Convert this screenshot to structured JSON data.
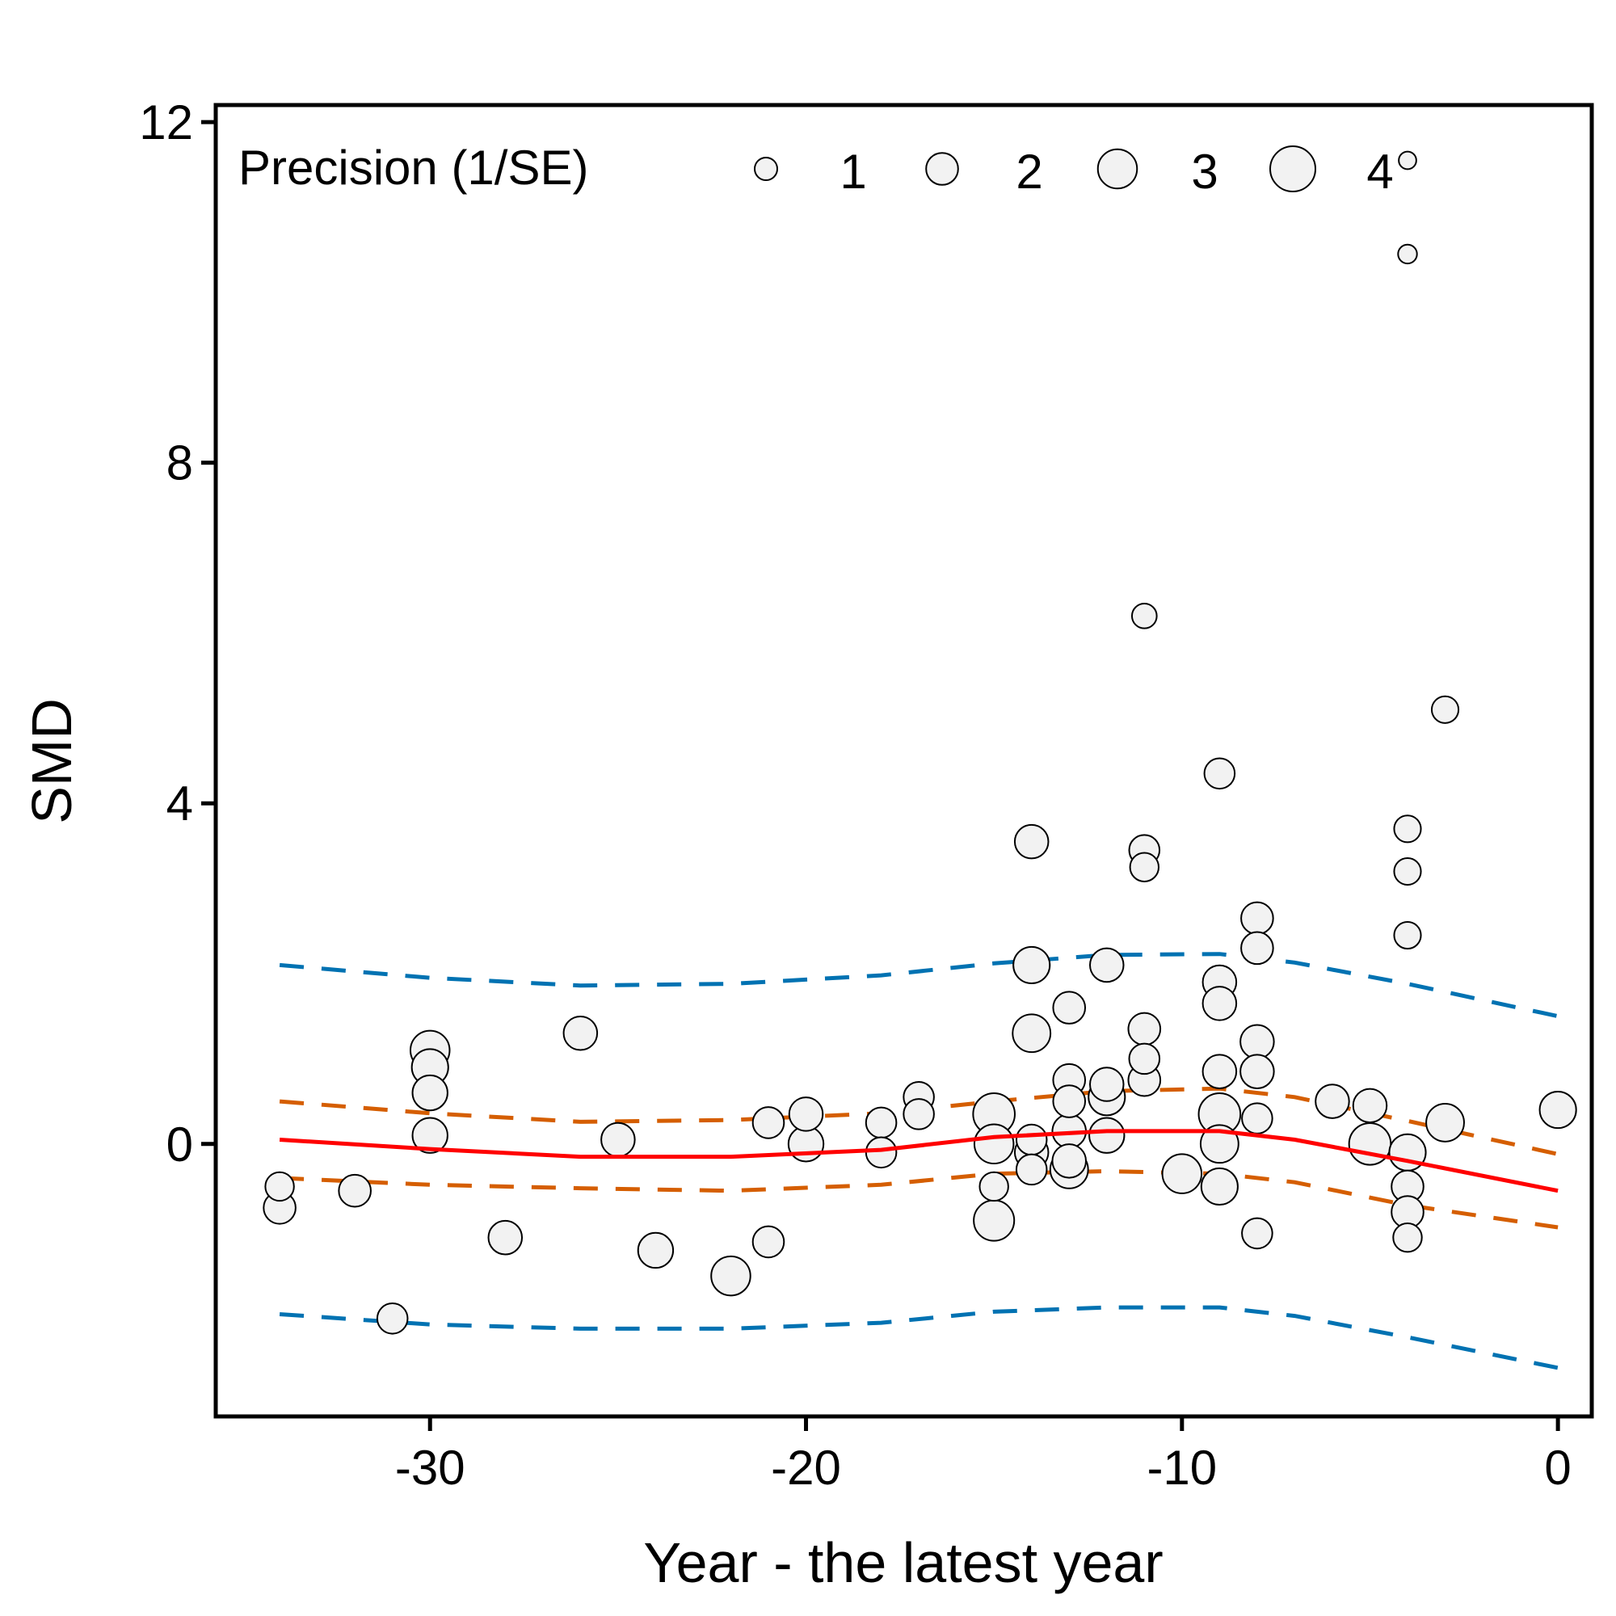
{
  "chart_data": {
    "type": "scatter",
    "title": "",
    "xlabel": "Year - the latest year",
    "ylabel": "SMD",
    "xlim": [
      -35.7,
      0.9
    ],
    "ylim": [
      -3.2,
      12.2
    ],
    "xticks": [
      -30,
      -20,
      -10,
      0
    ],
    "yticks": [
      0,
      4,
      8,
      12
    ],
    "grid": false,
    "legend": {
      "title": "Precision (1/SE)",
      "position": "top-left",
      "entries": [
        {
          "label": "1",
          "precision": 1
        },
        {
          "label": "2",
          "precision": 2
        },
        {
          "label": "3",
          "precision": 3
        },
        {
          "label": "4",
          "precision": 4
        }
      ]
    },
    "colors": {
      "point_fill": "#f2f2f2",
      "point_stroke": "#000000",
      "fit_line": "#ff0000",
      "confidence_band": "#d55e00",
      "prediction_band": "#0072b2"
    },
    "points": [
      {
        "x": -34,
        "y": -0.5,
        "precision": 1.6
      },
      {
        "x": -34,
        "y": -0.75,
        "precision": 2.0
      },
      {
        "x": -32,
        "y": -0.55,
        "precision": 2.0
      },
      {
        "x": -31,
        "y": -2.05,
        "precision": 1.8
      },
      {
        "x": -30,
        "y": 1.1,
        "precision": 3.0
      },
      {
        "x": -30,
        "y": 0.9,
        "precision": 2.6
      },
      {
        "x": -30,
        "y": 0.6,
        "precision": 2.4
      },
      {
        "x": -30,
        "y": 0.1,
        "precision": 2.4
      },
      {
        "x": -28,
        "y": -1.1,
        "precision": 2.2
      },
      {
        "x": -26,
        "y": 1.3,
        "precision": 2.2
      },
      {
        "x": -25,
        "y": 0.05,
        "precision": 2.2
      },
      {
        "x": -24,
        "y": -1.25,
        "precision": 2.4
      },
      {
        "x": -22,
        "y": -1.55,
        "precision": 3.0
      },
      {
        "x": -21,
        "y": 0.25,
        "precision": 1.9
      },
      {
        "x": -21,
        "y": -1.15,
        "precision": 1.9
      },
      {
        "x": -20,
        "y": 0.35,
        "precision": 2.2
      },
      {
        "x": -20,
        "y": 0.0,
        "precision": 2.4
      },
      {
        "x": -18,
        "y": 0.25,
        "precision": 1.8
      },
      {
        "x": -18,
        "y": -0.1,
        "precision": 1.8
      },
      {
        "x": -17,
        "y": 0.55,
        "precision": 1.8
      },
      {
        "x": -17,
        "y": 0.35,
        "precision": 1.8
      },
      {
        "x": -15,
        "y": 0.35,
        "precision": 3.4
      },
      {
        "x": -15,
        "y": 0.0,
        "precision": 3.0
      },
      {
        "x": -15,
        "y": -0.5,
        "precision": 1.6
      },
      {
        "x": -15,
        "y": -0.9,
        "precision": 3.2
      },
      {
        "x": -14,
        "y": 3.55,
        "precision": 2.2
      },
      {
        "x": -14,
        "y": 2.1,
        "precision": 2.6
      },
      {
        "x": -14,
        "y": 1.3,
        "precision": 2.8
      },
      {
        "x": -14,
        "y": 0.05,
        "precision": 1.8
      },
      {
        "x": -14,
        "y": -0.1,
        "precision": 2.2
      },
      {
        "x": -14,
        "y": -0.3,
        "precision": 1.8
      },
      {
        "x": -13,
        "y": 1.6,
        "precision": 2.0
      },
      {
        "x": -13,
        "y": 0.75,
        "precision": 2.0
      },
      {
        "x": -13,
        "y": 0.5,
        "precision": 2.0
      },
      {
        "x": -13,
        "y": 0.15,
        "precision": 2.2
      },
      {
        "x": -13,
        "y": -0.2,
        "precision": 2.2
      },
      {
        "x": -13,
        "y": -0.3,
        "precision": 2.8
      },
      {
        "x": -12,
        "y": 2.1,
        "precision": 2.2
      },
      {
        "x": -12,
        "y": 0.7,
        "precision": 2.2
      },
      {
        "x": -12,
        "y": 0.55,
        "precision": 2.6
      },
      {
        "x": -12,
        "y": 0.1,
        "precision": 2.4
      },
      {
        "x": -11,
        "y": 6.2,
        "precision": 1.2
      },
      {
        "x": -11,
        "y": 3.45,
        "precision": 1.8
      },
      {
        "x": -11,
        "y": 3.25,
        "precision": 1.6
      },
      {
        "x": -11,
        "y": 1.35,
        "precision": 2.0
      },
      {
        "x": -11,
        "y": 1.0,
        "precision": 1.8
      },
      {
        "x": -11,
        "y": 0.75,
        "precision": 2.0
      },
      {
        "x": -10,
        "y": -0.35,
        "precision": 3.0
      },
      {
        "x": -9,
        "y": 4.35,
        "precision": 1.8
      },
      {
        "x": -9,
        "y": 1.9,
        "precision": 2.2
      },
      {
        "x": -9,
        "y": 1.65,
        "precision": 2.2
      },
      {
        "x": -9,
        "y": 0.85,
        "precision": 2.2
      },
      {
        "x": -9,
        "y": 0.35,
        "precision": 3.4
      },
      {
        "x": -9,
        "y": 0.0,
        "precision": 2.8
      },
      {
        "x": -9,
        "y": -0.5,
        "precision": 2.6
      },
      {
        "x": -8,
        "y": 2.65,
        "precision": 2.0
      },
      {
        "x": -8,
        "y": 2.3,
        "precision": 2.0
      },
      {
        "x": -8,
        "y": 1.2,
        "precision": 2.2
      },
      {
        "x": -8,
        "y": 0.85,
        "precision": 2.2
      },
      {
        "x": -8,
        "y": 0.3,
        "precision": 1.8
      },
      {
        "x": -8,
        "y": -1.05,
        "precision": 1.8
      },
      {
        "x": -6,
        "y": 0.5,
        "precision": 2.2
      },
      {
        "x": -5,
        "y": 0.45,
        "precision": 2.2
      },
      {
        "x": -5,
        "y": 0.0,
        "precision": 3.4
      },
      {
        "x": -4,
        "y": 11.55,
        "precision": 0.6
      },
      {
        "x": -4,
        "y": 10.45,
        "precision": 0.7
      },
      {
        "x": -4,
        "y": 3.7,
        "precision": 1.4
      },
      {
        "x": -4,
        "y": 3.2,
        "precision": 1.4
      },
      {
        "x": -4,
        "y": 2.45,
        "precision": 1.4
      },
      {
        "x": -4,
        "y": -0.1,
        "precision": 2.6
      },
      {
        "x": -4,
        "y": -0.5,
        "precision": 2.0
      },
      {
        "x": -4,
        "y": -0.8,
        "precision": 2.0
      },
      {
        "x": -4,
        "y": -1.1,
        "precision": 1.6
      },
      {
        "x": -3,
        "y": 5.1,
        "precision": 1.4
      },
      {
        "x": -3,
        "y": 0.25,
        "precision": 2.8
      },
      {
        "x": 0,
        "y": 0.4,
        "precision": 2.6
      }
    ],
    "fit": {
      "x": [
        -34,
        -30,
        -26,
        -22,
        -18,
        -15,
        -12,
        -9,
        -7,
        -4,
        0
      ],
      "y": [
        0.05,
        -0.06,
        -0.15,
        -0.15,
        -0.07,
        0.08,
        0.15,
        0.15,
        0.05,
        -0.2,
        -0.55
      ]
    },
    "confidence_band": {
      "x": [
        -34,
        -30,
        -26,
        -22,
        -18,
        -15,
        -12,
        -9,
        -7,
        -4,
        0
      ],
      "upper": [
        0.5,
        0.36,
        0.26,
        0.28,
        0.36,
        0.5,
        0.62,
        0.65,
        0.55,
        0.27,
        -0.12
      ],
      "lower": [
        -0.4,
        -0.48,
        -0.52,
        -0.55,
        -0.48,
        -0.35,
        -0.32,
        -0.35,
        -0.45,
        -0.72,
        -0.98
      ]
    },
    "prediction_band": {
      "x": [
        -34,
        -30,
        -26,
        -22,
        -18,
        -15,
        -12,
        -9,
        -7,
        -4,
        0
      ],
      "upper": [
        2.1,
        1.95,
        1.86,
        1.88,
        1.98,
        2.12,
        2.22,
        2.23,
        2.13,
        1.88,
        1.5
      ],
      "lower": [
        -2.0,
        -2.12,
        -2.17,
        -2.17,
        -2.1,
        -1.97,
        -1.92,
        -1.92,
        -2.02,
        -2.27,
        -2.63
      ]
    }
  }
}
